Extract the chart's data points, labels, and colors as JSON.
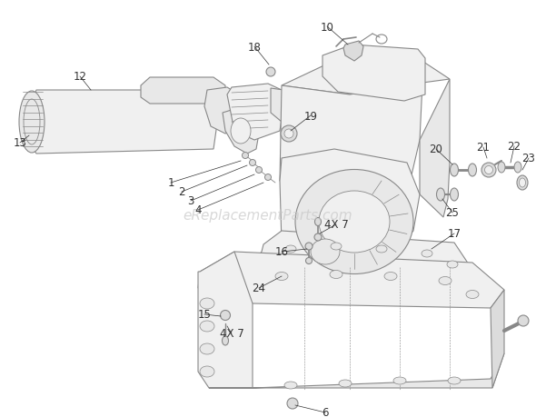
{
  "background_color": "#ffffff",
  "watermark": "eReplacementParts.com",
  "watermark_color": "#c8c8c8",
  "watermark_fontsize": 11,
  "line_color": "#888888",
  "label_color": "#333333",
  "label_fontsize": 8.5,
  "lw_main": 0.8,
  "lw_thin": 0.6,
  "fill_light": "#f0f0f0",
  "fill_mid": "#e8e8e8",
  "fill_dark": "#dcdcdc"
}
